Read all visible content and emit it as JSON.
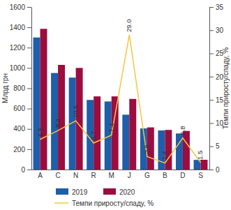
{
  "chart_data": {
    "type": "bar",
    "y_label": "Млрд грн",
    "y2_label": "Темпи приросту/спаду, %",
    "categories": [
      "A",
      "C",
      "N",
      "R",
      "M",
      "J",
      "G",
      "B",
      "D",
      "S"
    ],
    "series": [
      {
        "name": "2019",
        "type": "bar",
        "color": "#1f5ea8",
        "values": [
          1300,
          950,
          905,
          685,
          670,
          540,
          405,
          385,
          355,
          95
        ]
      },
      {
        "name": "2020",
        "type": "bar",
        "color": "#9c0d3f",
        "values": [
          1385,
          1030,
          1000,
          720,
          720,
          695,
          415,
          390,
          380,
          96
        ]
      },
      {
        "name": "Темпи приросту/спаду, %",
        "type": "line",
        "axis": "y2",
        "color": "#f2c744",
        "data_labels": true,
        "values": [
          6.5,
          8.4,
          10.5,
          5.7,
          7.4,
          29,
          2.8,
          1.4,
          6.8,
          1.5
        ],
        "value_labels": [
          "6.5",
          "8.4",
          "10.5",
          "5.7",
          "7.4",
          "29.0",
          "2.8",
          "1.4",
          "6.8",
          "1.5"
        ]
      }
    ],
    "ylim": [
      0,
      1600
    ],
    "yticks": [
      0,
      200,
      400,
      600,
      800,
      1000,
      1200,
      1400,
      1600
    ],
    "y2lim": [
      0,
      35
    ],
    "y2ticks": [
      0,
      5,
      10,
      15,
      20,
      25,
      30,
      35
    ],
    "grid": false,
    "legend": "bottom"
  }
}
